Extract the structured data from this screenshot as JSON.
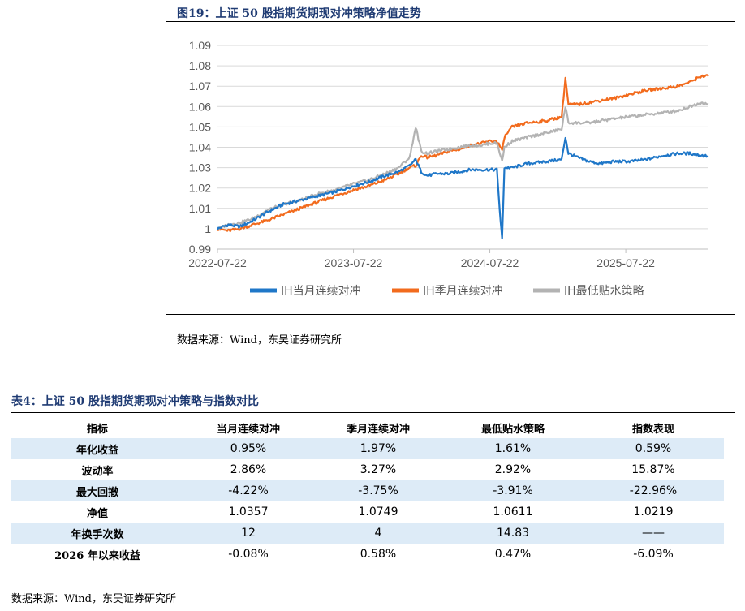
{
  "figure": {
    "title": "图19：上证 50 股指期货期现对冲策略净值走势",
    "source": "数据来源：Wind，东吴证券研究所"
  },
  "chart_data": {
    "type": "line",
    "title": "",
    "xlabel": "",
    "ylabel": "",
    "ylim": [
      0.99,
      1.09
    ],
    "y_ticks": [
      "0.99",
      "1",
      "1.01",
      "1.02",
      "1.03",
      "1.04",
      "1.05",
      "1.06",
      "1.07",
      "1.08",
      "1.09"
    ],
    "x_ticks": [
      "2022-07-22",
      "2023-07-22",
      "2024-07-22",
      "2025-07-22"
    ],
    "grid": "horizontal",
    "legend": "bottom",
    "x_domain": [
      "2022-07-22",
      "2026-03-01"
    ],
    "series": [
      {
        "name": "IH当月连续对冲",
        "color": "#1f77c8",
        "points": [
          [
            "2022-07-22",
            1.0
          ],
          [
            "2022-08-20",
            1.002
          ],
          [
            "2022-09-20",
            1.001
          ],
          [
            "2022-10-25",
            1.004
          ],
          [
            "2022-12-01",
            1.008
          ],
          [
            "2023-01-15",
            1.012
          ],
          [
            "2023-03-01",
            1.014
          ],
          [
            "2023-04-15",
            1.016
          ],
          [
            "2023-06-01",
            1.018
          ],
          [
            "2023-07-22",
            1.021
          ],
          [
            "2023-09-01",
            1.023
          ],
          [
            "2023-10-15",
            1.026
          ],
          [
            "2023-11-20",
            1.028
          ],
          [
            "2023-12-20",
            1.031
          ],
          [
            "2024-01-05",
            1.034
          ],
          [
            "2024-01-20",
            1.028
          ],
          [
            "2024-02-05",
            1.026
          ],
          [
            "2024-03-01",
            1.027
          ],
          [
            "2024-04-01",
            1.027
          ],
          [
            "2024-05-01",
            1.028
          ],
          [
            "2024-06-01",
            1.029
          ],
          [
            "2024-07-01",
            1.029
          ],
          [
            "2024-07-22",
            1.029
          ],
          [
            "2024-08-10",
            1.029
          ],
          [
            "2024-08-20",
            1.003
          ],
          [
            "2024-08-24",
            0.995
          ],
          [
            "2024-08-30",
            1.03
          ],
          [
            "2024-09-20",
            1.03
          ],
          [
            "2024-11-01",
            1.032
          ],
          [
            "2024-12-20",
            1.033
          ],
          [
            "2025-01-31",
            1.034
          ],
          [
            "2025-02-10",
            1.045
          ],
          [
            "2025-02-18",
            1.037
          ],
          [
            "2025-03-15",
            1.035
          ],
          [
            "2025-04-15",
            1.033
          ],
          [
            "2025-05-15",
            1.032
          ],
          [
            "2025-06-20",
            1.033
          ],
          [
            "2025-08-01",
            1.033
          ],
          [
            "2025-09-15",
            1.034
          ],
          [
            "2025-11-01",
            1.036
          ],
          [
            "2025-12-10",
            1.037
          ],
          [
            "2026-01-10",
            1.037
          ],
          [
            "2026-02-10",
            1.036
          ],
          [
            "2026-03-01",
            1.0357
          ]
        ]
      },
      {
        "name": "IH季月连续对冲",
        "color": "#f26b1d",
        "points": [
          [
            "2022-07-22",
            1.0
          ],
          [
            "2022-08-20",
            0.999
          ],
          [
            "2022-09-20",
            1.0
          ],
          [
            "2022-10-25",
            1.002
          ],
          [
            "2022-12-01",
            1.004
          ],
          [
            "2023-01-15",
            1.007
          ],
          [
            "2023-03-01",
            1.01
          ],
          [
            "2023-04-15",
            1.013
          ],
          [
            "2023-06-01",
            1.016
          ],
          [
            "2023-07-22",
            1.019
          ],
          [
            "2023-09-01",
            1.021
          ],
          [
            "2023-10-15",
            1.024
          ],
          [
            "2023-11-20",
            1.027
          ],
          [
            "2023-12-20",
            1.03
          ],
          [
            "2024-01-05",
            1.031
          ],
          [
            "2024-01-20",
            1.036
          ],
          [
            "2024-02-05",
            1.035
          ],
          [
            "2024-03-01",
            1.036
          ],
          [
            "2024-04-01",
            1.038
          ],
          [
            "2024-05-01",
            1.039
          ],
          [
            "2024-06-01",
            1.041
          ],
          [
            "2024-07-01",
            1.042
          ],
          [
            "2024-07-22",
            1.043
          ],
          [
            "2024-08-10",
            1.043
          ],
          [
            "2024-08-20",
            1.04
          ],
          [
            "2024-08-24",
            1.038
          ],
          [
            "2024-08-30",
            1.045
          ],
          [
            "2024-09-20",
            1.05
          ],
          [
            "2024-11-01",
            1.052
          ],
          [
            "2024-12-20",
            1.053
          ],
          [
            "2025-01-31",
            1.055
          ],
          [
            "2025-02-10",
            1.074
          ],
          [
            "2025-02-18",
            1.061
          ],
          [
            "2025-03-15",
            1.061
          ],
          [
            "2025-04-15",
            1.062
          ],
          [
            "2025-05-15",
            1.063
          ],
          [
            "2025-06-20",
            1.064
          ],
          [
            "2025-08-01",
            1.066
          ],
          [
            "2025-09-15",
            1.068
          ],
          [
            "2025-11-01",
            1.069
          ],
          [
            "2025-12-10",
            1.07
          ],
          [
            "2026-01-10",
            1.072
          ],
          [
            "2026-02-10",
            1.075
          ],
          [
            "2026-03-01",
            1.0749
          ]
        ]
      },
      {
        "name": "IH最低贴水策略",
        "color": "#b3b3b3",
        "points": [
          [
            "2022-07-22",
            1.0
          ],
          [
            "2022-08-20",
            1.002
          ],
          [
            "2022-09-20",
            1.003
          ],
          [
            "2022-10-25",
            1.005
          ],
          [
            "2022-12-01",
            1.009
          ],
          [
            "2023-01-15",
            1.012
          ],
          [
            "2023-03-01",
            1.014
          ],
          [
            "2023-04-15",
            1.017
          ],
          [
            "2023-06-01",
            1.019
          ],
          [
            "2023-07-22",
            1.022
          ],
          [
            "2023-09-01",
            1.024
          ],
          [
            "2023-10-15",
            1.027
          ],
          [
            "2023-11-20",
            1.03
          ],
          [
            "2023-12-20",
            1.035
          ],
          [
            "2024-01-05",
            1.05
          ],
          [
            "2024-01-20",
            1.038
          ],
          [
            "2024-02-05",
            1.037
          ],
          [
            "2024-03-01",
            1.038
          ],
          [
            "2024-04-01",
            1.039
          ],
          [
            "2024-05-01",
            1.04
          ],
          [
            "2024-06-01",
            1.041
          ],
          [
            "2024-07-01",
            1.041
          ],
          [
            "2024-07-22",
            1.042
          ],
          [
            "2024-08-10",
            1.042
          ],
          [
            "2024-08-20",
            1.036
          ],
          [
            "2024-08-24",
            1.033
          ],
          [
            "2024-08-30",
            1.04
          ],
          [
            "2024-09-20",
            1.043
          ],
          [
            "2024-11-01",
            1.045
          ],
          [
            "2024-12-20",
            1.047
          ],
          [
            "2025-01-31",
            1.049
          ],
          [
            "2025-02-10",
            1.06
          ],
          [
            "2025-02-18",
            1.052
          ],
          [
            "2025-03-15",
            1.052
          ],
          [
            "2025-04-15",
            1.052
          ],
          [
            "2025-05-15",
            1.053
          ],
          [
            "2025-06-20",
            1.054
          ],
          [
            "2025-08-01",
            1.055
          ],
          [
            "2025-09-15",
            1.056
          ],
          [
            "2025-11-01",
            1.057
          ],
          [
            "2025-12-10",
            1.058
          ],
          [
            "2026-01-10",
            1.06
          ],
          [
            "2026-02-10",
            1.062
          ],
          [
            "2026-03-01",
            1.0611
          ]
        ]
      }
    ]
  },
  "table": {
    "title": "表4：上证 50 股指期货期现对冲策略与指数对比",
    "headers": [
      "指标",
      "当月连续对冲",
      "季月连续对冲",
      "最低贴水策略",
      "指数表现"
    ],
    "rows": [
      [
        "年化收益",
        "0.95%",
        "1.97%",
        "1.61%",
        "0.59%"
      ],
      [
        "波动率",
        "2.86%",
        "3.27%",
        "2.92%",
        "15.87%"
      ],
      [
        "最大回撤",
        "-4.22%",
        "-3.75%",
        "-3.91%",
        "-22.96%"
      ],
      [
        "净值",
        "1.0357",
        "1.0749",
        "1.0611",
        "1.0219"
      ],
      [
        "年换手次数",
        "12",
        "4",
        "14.83",
        "——"
      ],
      [
        "2026 年以来收益",
        "-0.08%",
        "0.58%",
        "0.47%",
        "-6.09%"
      ]
    ],
    "source": "数据来源：Wind，东吴证券研究所"
  }
}
